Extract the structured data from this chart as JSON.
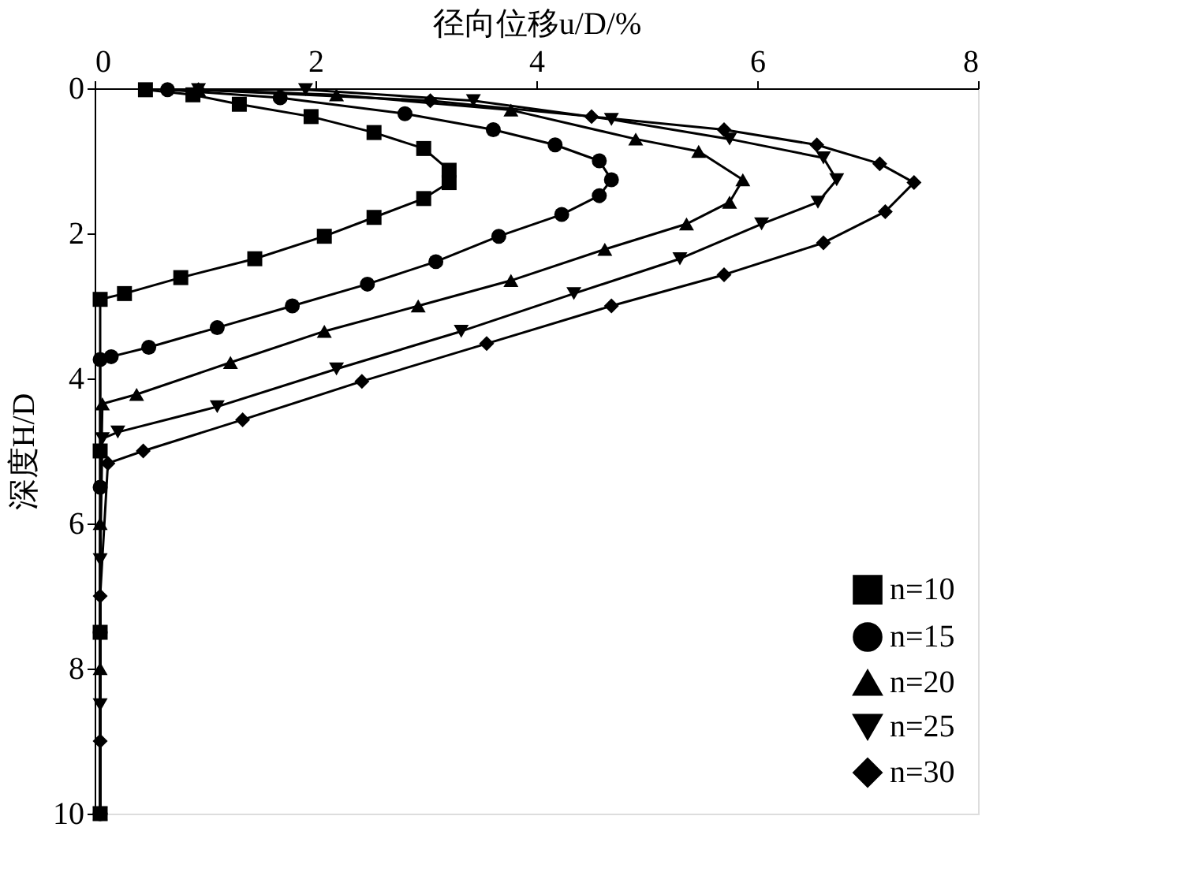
{
  "chart_data": {
    "type": "line",
    "xlabel": "径向位移u/D/%",
    "ylabel": "深度H/D",
    "xlim": [
      0,
      8
    ],
    "xticks": [
      0,
      2,
      4,
      6,
      8
    ],
    "ylim": [
      10,
      0
    ],
    "yticks": [
      0,
      2,
      4,
      6,
      8,
      10
    ],
    "grid": false,
    "legend": "bottom right",
    "line_style": "solid",
    "series": [
      {
        "name": "n=10",
        "color": "#000000",
        "marker": "square",
        "x": [
          0.46,
          0.89,
          1.31,
          1.96,
          2.53,
          2.98,
          3.21,
          3.21,
          2.98,
          2.53,
          2.08,
          1.45,
          0.78,
          0.27,
          0.05,
          0.05,
          0.05,
          0.05
        ],
        "values": [
          0.02,
          0.09,
          0.22,
          0.39,
          0.61,
          0.83,
          1.13,
          1.3,
          1.52,
          1.78,
          2.04,
          2.35,
          2.61,
          2.83,
          2.91,
          5,
          7.5,
          10
        ]
      },
      {
        "name": "n=15",
        "color": "#000000",
        "marker": "circle",
        "x": [
          0.66,
          1.68,
          2.81,
          3.61,
          4.17,
          4.57,
          4.68,
          4.57,
          4.23,
          3.66,
          3.09,
          2.47,
          1.79,
          1.11,
          0.49,
          0.15,
          0.05,
          0.05,
          0.05,
          0.05
        ],
        "values": [
          0.02,
          0.13,
          0.35,
          0.57,
          0.78,
          1.0,
          1.26,
          1.48,
          1.74,
          2.04,
          2.39,
          2.7,
          3.0,
          3.3,
          3.57,
          3.7,
          3.74,
          5.5,
          7.5,
          10
        ]
      },
      {
        "name": "n=20",
        "color": "#000000",
        "marker": "triangle",
        "x": [
          0.94,
          2.19,
          3.77,
          4.9,
          5.47,
          5.87,
          5.75,
          5.36,
          4.62,
          3.77,
          2.93,
          2.08,
          1.23,
          0.38,
          0.07,
          0.05,
          0.05,
          0.05
        ],
        "values": [
          0.02,
          0.09,
          0.3,
          0.7,
          0.87,
          1.26,
          1.57,
          1.87,
          2.22,
          2.65,
          3.0,
          3.35,
          3.78,
          4.22,
          4.35,
          6,
          8,
          10
        ]
      },
      {
        "name": "n=25",
        "color": "#000000",
        "marker": "triangle-down",
        "x": [
          0.94,
          1.91,
          3.43,
          4.68,
          5.75,
          6.6,
          6.72,
          6.55,
          6.04,
          5.3,
          4.34,
          3.32,
          2.19,
          1.11,
          0.21,
          0.07,
          0.05,
          0.05,
          0.05
        ],
        "values": [
          0.02,
          0.02,
          0.17,
          0.43,
          0.7,
          0.96,
          1.26,
          1.57,
          1.87,
          2.35,
          2.83,
          3.35,
          3.87,
          4.39,
          4.74,
          4.83,
          6.5,
          8.5,
          10
        ]
      },
      {
        "name": "n=30",
        "color": "#000000",
        "marker": "diamond",
        "x": [
          0.94,
          3.04,
          4.5,
          5.7,
          6.54,
          7.11,
          7.42,
          7.16,
          6.6,
          5.7,
          4.68,
          3.55,
          2.42,
          1.34,
          0.44,
          0.12,
          0.05,
          0.05,
          0.05
        ],
        "values": [
          0.02,
          0.17,
          0.39,
          0.57,
          0.78,
          1.04,
          1.3,
          1.7,
          2.13,
          2.57,
          3.0,
          3.52,
          4.04,
          4.57,
          5.0,
          5.17,
          7,
          9,
          10
        ]
      }
    ]
  }
}
